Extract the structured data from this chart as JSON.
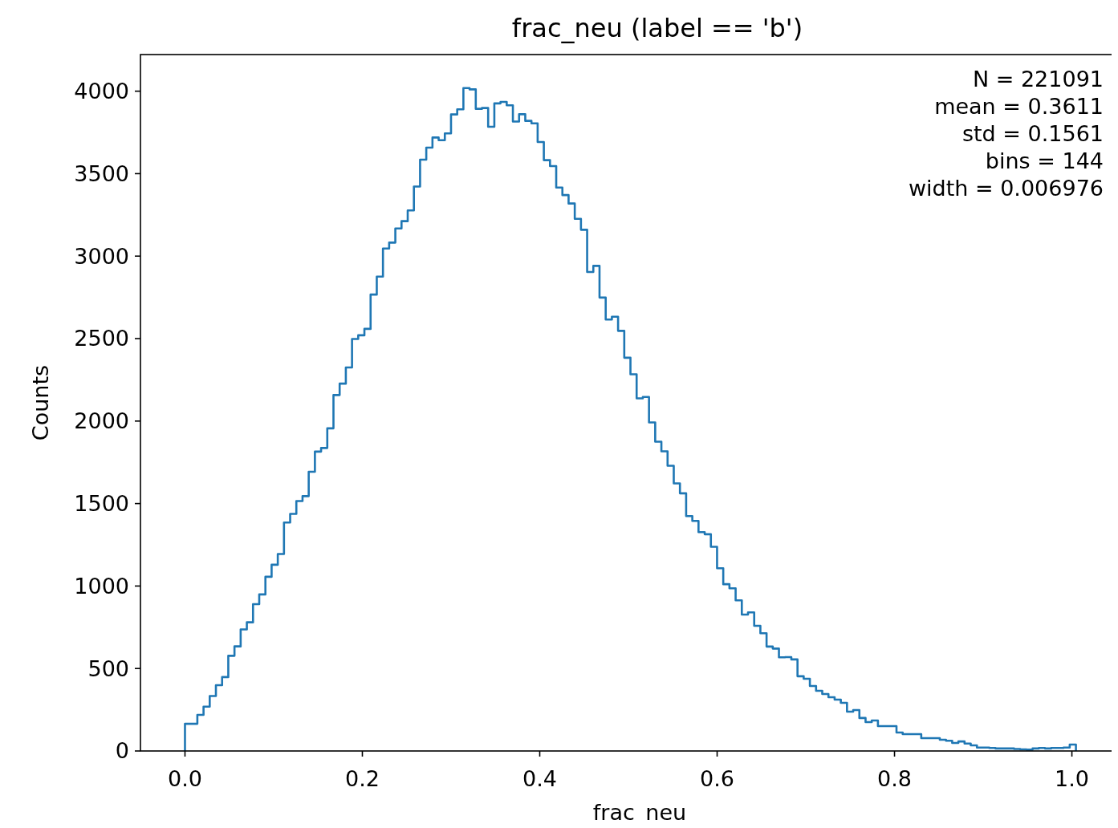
{
  "chart_data": {
    "type": "histogram",
    "title": "frac_neu (label == 'b')",
    "xlabel": "frac_neu",
    "ylabel": "Counts",
    "color": "#1f77b4",
    "bins": [
      0,
      0.006976,
      0.013952,
      0.020928,
      0.027904,
      0.03488,
      0.041856,
      0.048832,
      0.055808,
      0.062784,
      0.06976,
      0.076736,
      0.083712,
      0.090688,
      0.097664,
      0.10464,
      0.111616,
      0.118592,
      0.125568,
      0.132544,
      0.13952,
      0.146496,
      0.153472,
      0.160448,
      0.167424,
      0.1744,
      0.181376,
      0.188352,
      0.195328,
      0.202304,
      0.20928,
      0.216256,
      0.223232,
      0.230208,
      0.237184,
      0.24416,
      0.251136,
      0.258112,
      0.265088,
      0.272064,
      0.27904,
      0.286016,
      0.292992,
      0.299968,
      0.306944,
      0.31392,
      0.320896,
      0.327872,
      0.334848,
      0.341824,
      0.3488,
      0.355776,
      0.362752,
      0.369728,
      0.376704,
      0.38368,
      0.390656,
      0.397632,
      0.404608,
      0.411584,
      0.41856,
      0.425536,
      0.432512,
      0.439488,
      0.446464,
      0.45344,
      0.460416,
      0.467392,
      0.474368,
      0.481344,
      0.48832,
      0.495296,
      0.502272,
      0.509248,
      0.516224,
      0.5232,
      0.530176,
      0.537152,
      0.544128,
      0.551104,
      0.55808,
      0.565056,
      0.572032,
      0.579008,
      0.585984,
      0.59296,
      0.599936,
      0.606912,
      0.613888,
      0.620864,
      0.62784,
      0.634816,
      0.641792,
      0.648768,
      0.655744,
      0.66272,
      0.669696,
      0.676672,
      0.683648,
      0.690624,
      0.6976,
      0.704576,
      0.711552,
      0.718528,
      0.725504,
      0.73248,
      0.739456,
      0.746432,
      0.753408,
      0.760384,
      0.76736,
      0.774336,
      0.781312,
      0.788288,
      0.795264,
      0.80224,
      0.809216,
      0.816192,
      0.823168,
      0.830144,
      0.83712,
      0.844096,
      0.851072,
      0.858048,
      0.865024,
      0.872,
      0.878976,
      0.885952,
      0.892928,
      0.899904,
      0.90688,
      0.913856,
      0.920832,
      0.927808,
      0.934784,
      0.94176,
      0.948736,
      0.955712,
      0.962688,
      0.969664,
      0.97664,
      0.983616,
      0.990592,
      0.997568,
      1.004544
    ],
    "values": [
      165,
      165,
      219,
      269,
      333,
      399,
      448,
      577,
      634,
      737,
      780,
      890,
      949,
      1056,
      1129,
      1194,
      1385,
      1437,
      1515,
      1545,
      1693,
      1815,
      1837,
      1956,
      2158,
      2227,
      2325,
      2498,
      2520,
      2559,
      2767,
      2876,
      3046,
      3082,
      3168,
      3212,
      3277,
      3422,
      3585,
      3658,
      3719,
      3703,
      3744,
      3859,
      3890,
      4019,
      4011,
      3893,
      3898,
      3784,
      3926,
      3935,
      3914,
      3816,
      3860,
      3820,
      3805,
      3692,
      3582,
      3546,
      3416,
      3370,
      3319,
      3226,
      3160,
      2904,
      2941,
      2749,
      2616,
      2633,
      2547,
      2384,
      2284,
      2138,
      2146,
      1992,
      1875,
      1817,
      1729,
      1622,
      1562,
      1424,
      1395,
      1327,
      1314,
      1238,
      1108,
      1011,
      986,
      913,
      827,
      840,
      759,
      714,
      633,
      621,
      568,
      569,
      555,
      453,
      438,
      394,
      365,
      345,
      326,
      311,
      292,
      238,
      248,
      200,
      175,
      185,
      151,
      151,
      151,
      112,
      102,
      102,
      102,
      78,
      78,
      78,
      68,
      62,
      49,
      58,
      45,
      34,
      21,
      21,
      18,
      15,
      15,
      15,
      12,
      10,
      8,
      15,
      18,
      15,
      18,
      18,
      21,
      39
    ],
    "xlim": [
      -0.0502,
      1.0547
    ],
    "ylim": [
      0,
      4222
    ],
    "xticks": [
      {
        "value": 0,
        "label": "0.0"
      },
      {
        "value": 0.2,
        "label": "0.2"
      },
      {
        "value": 0.4,
        "label": "0.4"
      },
      {
        "value": 0.6,
        "label": "0.6"
      },
      {
        "value": 0.8,
        "label": "0.8"
      },
      {
        "value": 1,
        "label": "1.0"
      }
    ],
    "yticks": [
      0,
      500,
      1000,
      1500,
      2000,
      2500,
      3000,
      3500,
      4000
    ],
    "annotations": [
      "N = 221091",
      "mean = 0.3611",
      "std = 0.1561",
      "bins = 144",
      "width = 0.006976"
    ]
  }
}
